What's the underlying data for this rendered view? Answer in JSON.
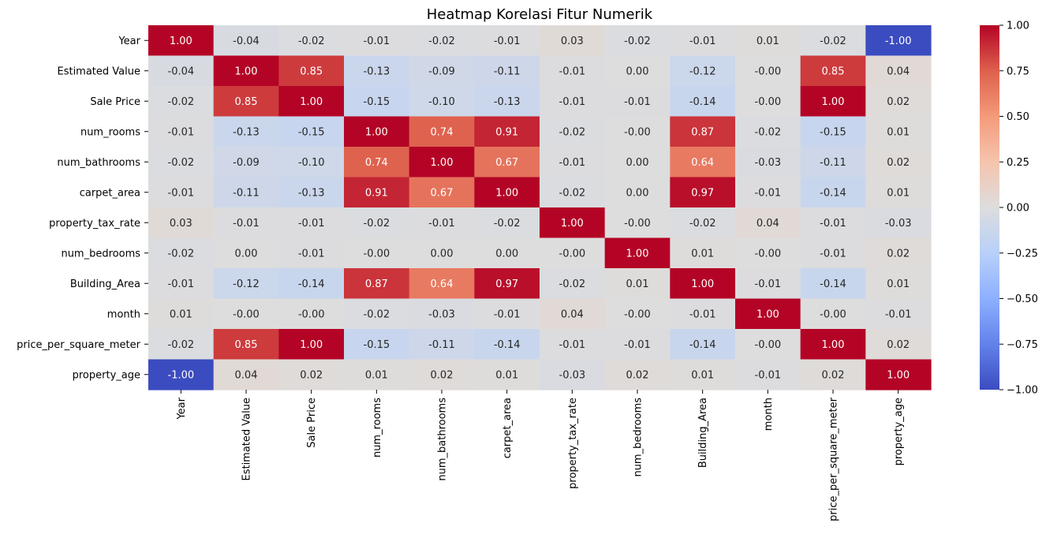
{
  "chart_data": {
    "type": "heatmap",
    "title": "Heatmap Korelasi Fitur Numerik",
    "colormap": "coolwarm",
    "row_labels": [
      "Year",
      "Estimated Value",
      "Sale Price",
      "num_rooms",
      "num_bathrooms",
      "carpet_area",
      "property_tax_rate",
      "num_bedrooms",
      "Building_Area",
      "month",
      "price_per_square_meter",
      "property_age"
    ],
    "col_labels": [
      "Year",
      "Estimated Value",
      "Sale Price",
      "num_rooms",
      "num_bathrooms",
      "carpet_area",
      "property_tax_rate",
      "num_bedrooms",
      "Building_Area",
      "month",
      "price_per_square_meter",
      "property_age"
    ],
    "values": [
      [
        1.0,
        -0.04,
        -0.02,
        -0.01,
        -0.02,
        -0.01,
        0.03,
        -0.02,
        -0.01,
        0.01,
        -0.02,
        -1.0
      ],
      [
        -0.04,
        1.0,
        0.85,
        -0.13,
        -0.09,
        -0.11,
        -0.01,
        0.0,
        -0.12,
        -0.0,
        0.85,
        0.04
      ],
      [
        -0.02,
        0.85,
        1.0,
        -0.15,
        -0.1,
        -0.13,
        -0.01,
        -0.01,
        -0.14,
        -0.0,
        1.0,
        0.02
      ],
      [
        -0.01,
        -0.13,
        -0.15,
        1.0,
        0.74,
        0.91,
        -0.02,
        -0.0,
        0.87,
        -0.02,
        -0.15,
        0.01
      ],
      [
        -0.02,
        -0.09,
        -0.1,
        0.74,
        1.0,
        0.67,
        -0.01,
        0.0,
        0.64,
        -0.03,
        -0.11,
        0.02
      ],
      [
        -0.01,
        -0.11,
        -0.13,
        0.91,
        0.67,
        1.0,
        -0.02,
        0.0,
        0.97,
        -0.01,
        -0.14,
        0.01
      ],
      [
        0.03,
        -0.01,
        -0.01,
        -0.02,
        -0.01,
        -0.02,
        1.0,
        -0.0,
        -0.02,
        0.04,
        -0.01,
        -0.03
      ],
      [
        -0.02,
        0.0,
        -0.01,
        -0.0,
        0.0,
        0.0,
        -0.0,
        1.0,
        0.01,
        -0.0,
        -0.01,
        0.02
      ],
      [
        -0.01,
        -0.12,
        -0.14,
        0.87,
        0.64,
        0.97,
        -0.02,
        0.01,
        1.0,
        -0.01,
        -0.14,
        0.01
      ],
      [
        0.01,
        -0.0,
        -0.0,
        -0.02,
        -0.03,
        -0.01,
        0.04,
        -0.0,
        -0.01,
        1.0,
        -0.0,
        -0.01
      ],
      [
        -0.02,
        0.85,
        1.0,
        -0.15,
        -0.11,
        -0.14,
        -0.01,
        -0.01,
        -0.14,
        -0.0,
        1.0,
        0.02
      ],
      [
        -1.0,
        0.04,
        0.02,
        0.01,
        0.02,
        0.01,
        -0.03,
        0.02,
        0.01,
        -0.01,
        0.02,
        1.0
      ]
    ],
    "value_labels": [
      [
        "1.00",
        "-0.04",
        "-0.02",
        "-0.01",
        "-0.02",
        "-0.01",
        "0.03",
        "-0.02",
        "-0.01",
        "0.01",
        "-0.02",
        "-1.00"
      ],
      [
        "-0.04",
        "1.00",
        "0.85",
        "-0.13",
        "-0.09",
        "-0.11",
        "-0.01",
        "0.00",
        "-0.12",
        "-0.00",
        "0.85",
        "0.04"
      ],
      [
        "-0.02",
        "0.85",
        "1.00",
        "-0.15",
        "-0.10",
        "-0.13",
        "-0.01",
        "-0.01",
        "-0.14",
        "-0.00",
        "1.00",
        "0.02"
      ],
      [
        "-0.01",
        "-0.13",
        "-0.15",
        "1.00",
        "0.74",
        "0.91",
        "-0.02",
        "-0.00",
        "0.87",
        "-0.02",
        "-0.15",
        "0.01"
      ],
      [
        "-0.02",
        "-0.09",
        "-0.10",
        "0.74",
        "1.00",
        "0.67",
        "-0.01",
        "0.00",
        "0.64",
        "-0.03",
        "-0.11",
        "0.02"
      ],
      [
        "-0.01",
        "-0.11",
        "-0.13",
        "0.91",
        "0.67",
        "1.00",
        "-0.02",
        "0.00",
        "0.97",
        "-0.01",
        "-0.14",
        "0.01"
      ],
      [
        "0.03",
        "-0.01",
        "-0.01",
        "-0.02",
        "-0.01",
        "-0.02",
        "1.00",
        "-0.00",
        "-0.02",
        "0.04",
        "-0.01",
        "-0.03"
      ],
      [
        "-0.02",
        "0.00",
        "-0.01",
        "-0.00",
        "0.00",
        "0.00",
        "-0.00",
        "1.00",
        "0.01",
        "-0.00",
        "-0.01",
        "0.02"
      ],
      [
        "-0.01",
        "-0.12",
        "-0.14",
        "0.87",
        "0.64",
        "0.97",
        "-0.02",
        "0.01",
        "1.00",
        "-0.01",
        "-0.14",
        "0.01"
      ],
      [
        "0.01",
        "-0.00",
        "-0.00",
        "-0.02",
        "-0.03",
        "-0.01",
        "0.04",
        "-0.00",
        "-0.01",
        "1.00",
        "-0.00",
        "-0.01"
      ],
      [
        "-0.02",
        "0.85",
        "1.00",
        "-0.15",
        "-0.11",
        "-0.14",
        "-0.01",
        "-0.01",
        "-0.14",
        "-0.00",
        "1.00",
        "0.02"
      ],
      [
        "-1.00",
        "0.04",
        "0.02",
        "0.01",
        "0.02",
        "0.01",
        "-0.03",
        "0.02",
        "0.01",
        "-0.01",
        "0.02",
        "1.00"
      ]
    ],
    "colorbar": {
      "vmin": -1.0,
      "vmax": 1.0,
      "ticks": [
        1.0,
        0.75,
        0.5,
        0.25,
        0.0,
        -0.25,
        -0.5,
        -0.75,
        -1.0
      ],
      "tick_labels": [
        "1.00",
        "0.75",
        "0.50",
        "0.25",
        "0.00",
        "−0.25",
        "−0.50",
        "−0.75",
        "−1.00"
      ]
    }
  }
}
